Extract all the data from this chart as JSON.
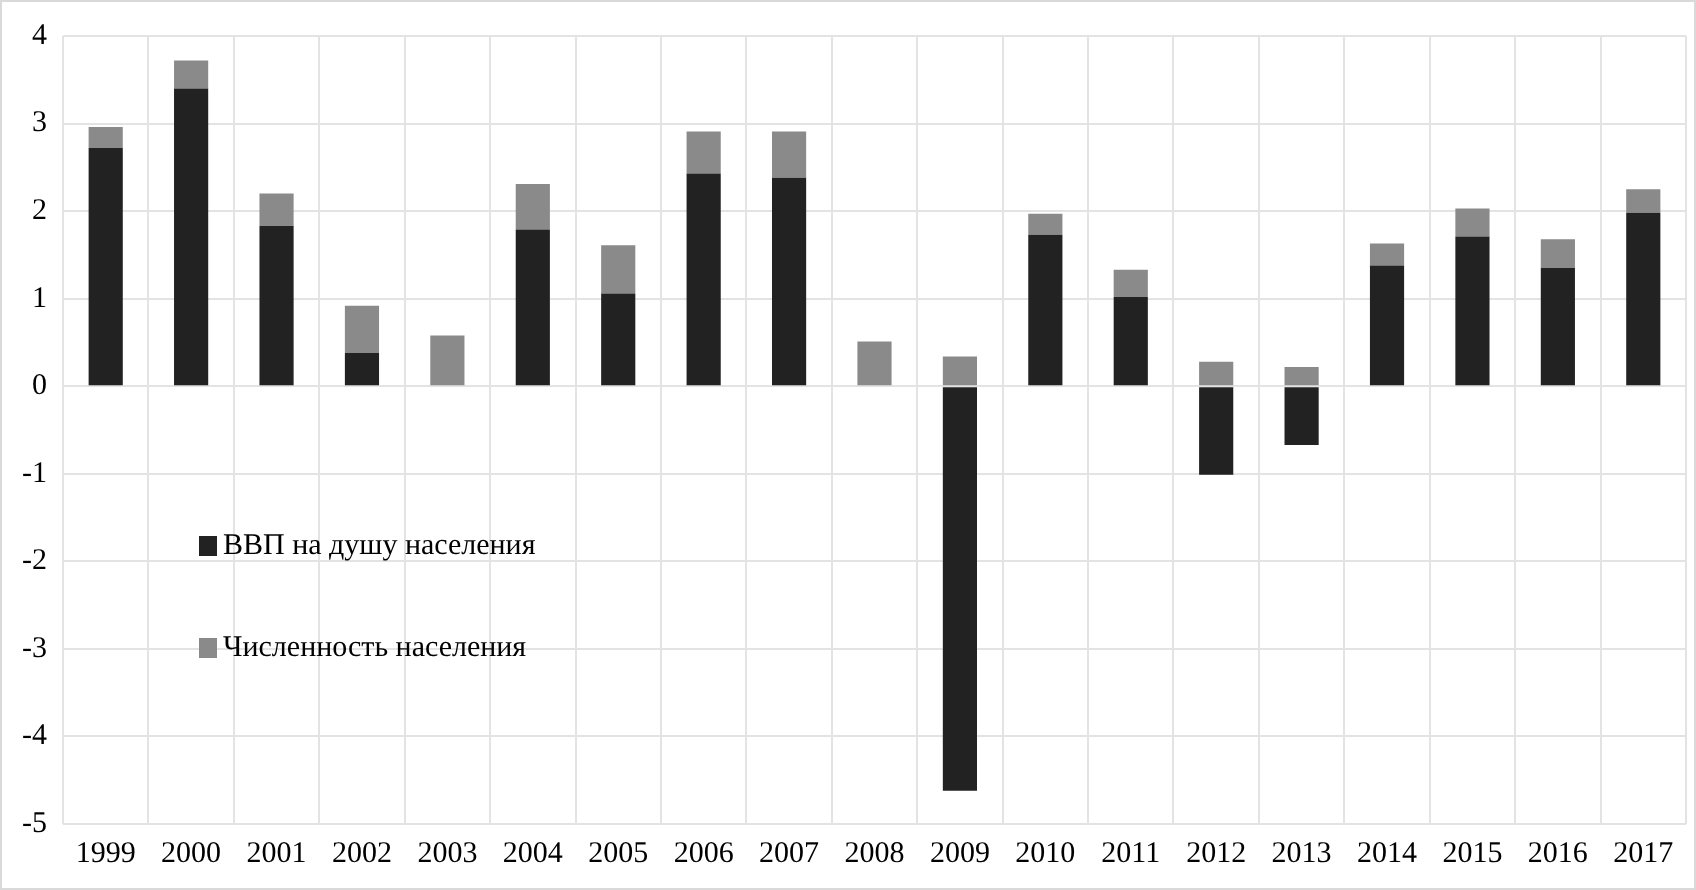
{
  "chart_data": {
    "type": "bar",
    "stacked": true,
    "categories": [
      "1999",
      "2000",
      "2001",
      "2002",
      "2003",
      "2004",
      "2005",
      "2006",
      "2007",
      "2008",
      "2009",
      "2010",
      "2011",
      "2012",
      "2013",
      "2014",
      "2015",
      "2016",
      "2017"
    ],
    "series": [
      {
        "name": "ВВП на душу населения",
        "color": "#222222",
        "values": [
          2.72,
          3.4,
          1.83,
          0.38,
          0,
          1.79,
          1.06,
          2.43,
          2.38,
          0,
          -4.62,
          1.73,
          1.02,
          -1.01,
          -0.67,
          1.38,
          1.71,
          1.35,
          1.98
        ]
      },
      {
        "name": "Численность населения",
        "color": "#8a8a8a",
        "values": [
          0.24,
          0.32,
          0.37,
          0.54,
          0.58,
          0.52,
          0.55,
          0.48,
          0.53,
          0.51,
          0.34,
          0.24,
          0.31,
          0.28,
          0.22,
          0.25,
          0.32,
          0.33,
          0.27
        ]
      }
    ],
    "ylim": [
      -5,
      4
    ],
    "yticks": [
      -5,
      -4,
      -3,
      -2,
      -1,
      0,
      1,
      2,
      3,
      4
    ],
    "grid": true,
    "legend": "center left"
  }
}
